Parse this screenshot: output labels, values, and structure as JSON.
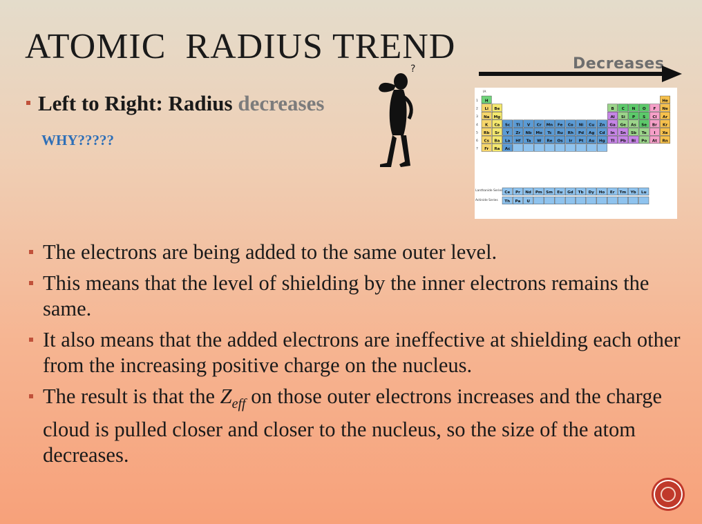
{
  "slide": {
    "title": "ATOMIC  RADIUS TREND",
    "subtitle": {
      "prefix": "Left to Right: Radius ",
      "highlight": "decreases"
    },
    "why": "WHY?????",
    "arrow_label": "Decreases",
    "bullets": [
      {
        "text": "The electrons are being added to the same outer level."
      },
      {
        "text": "This means that the level of shielding by the inner electrons remains the same."
      },
      {
        "text": "It also means that the added electrons are ineffective at shielding each other from the increasing positive charge on the nucleus."
      },
      {
        "before": "The result is that the ",
        "var": "Z",
        "sub": "eff",
        "after": " on those outer electrons increases and the charge cloud is pulled closer and closer to the nucleus, so the size of the atom decreases."
      }
    ]
  },
  "periodic_table": {
    "lanthanide_label": "Lanthanide Series",
    "actinide_label": "Actinide Series",
    "periods": [
      "1",
      "2",
      "3",
      "4",
      "5",
      "6",
      "7"
    ],
    "group_labels": [
      "IA",
      "IIA",
      "IIIB",
      "IVB",
      "VB",
      "VIB",
      "VIIB",
      "VIII",
      "IB",
      "IIB",
      "IIIA",
      "IVA",
      "VA",
      "VIA",
      "VIIA",
      "0"
    ],
    "rows": [
      [
        "H",
        "",
        "",
        "",
        "",
        "",
        "",
        "",
        "",
        "",
        "",
        "",
        "",
        "",
        "",
        "",
        "",
        "He"
      ],
      [
        "Li",
        "Be",
        "",
        "",
        "",
        "",
        "",
        "",
        "",
        "",
        "",
        "",
        "B",
        "C",
        "N",
        "O",
        "F",
        "Ne"
      ],
      [
        "Na",
        "Mg",
        "",
        "",
        "",
        "",
        "",
        "",
        "",
        "",
        "",
        "",
        "Al",
        "Si",
        "P",
        "S",
        "Cl",
        "Ar"
      ],
      [
        "K",
        "Ca",
        "Sc",
        "Ti",
        "V",
        "Cr",
        "Mn",
        "Fe",
        "Co",
        "Ni",
        "Cu",
        "Zn",
        "Ga",
        "Ge",
        "As",
        "Se",
        "Br",
        "Kr"
      ],
      [
        "Rb",
        "Sr",
        "Y",
        "Zr",
        "Nb",
        "Mo",
        "Tc",
        "Ru",
        "Rh",
        "Pd",
        "Ag",
        "Cd",
        "In",
        "Sn",
        "Sb",
        "Te",
        "I",
        "Xe"
      ],
      [
        "Cs",
        "Ba",
        "La",
        "Hf",
        "Ta",
        "W",
        "Re",
        "Os",
        "Ir",
        "Pt",
        "Au",
        "Hg",
        "Tl",
        "Pb",
        "Bi",
        "Po",
        "At",
        "Rn"
      ],
      [
        "Fr",
        "Ra",
        "Ac",
        "",
        "",
        "",
        "",
        "",
        "",
        "",
        "",
        "",
        "",
        "",
        "",
        "",
        "",
        ""
      ]
    ],
    "lanthanides": [
      "Ce",
      "Pr",
      "Nd",
      "Pm",
      "Sm",
      "Eu",
      "Gd",
      "Tb",
      "Dy",
      "Ho",
      "Er",
      "Tm",
      "Yb",
      "Lu"
    ],
    "actinides": [
      "Th",
      "Pa",
      "U",
      "",
      "",
      "",
      "",
      "",
      "",
      "",
      "",
      "",
      "",
      ""
    ],
    "colors": {
      "alkali": "#f6d66b",
      "alkaline": "#f4e86e",
      "transition": "#5b9bd5",
      "metalloid": "#9bd48a",
      "nonmetal": "#5cc96a",
      "halogen": "#f59fc8",
      "noble": "#f6c04c",
      "hydrogen": "#6fd37a",
      "post": "#c685e6",
      "inner": "#8fc3ee"
    }
  }
}
